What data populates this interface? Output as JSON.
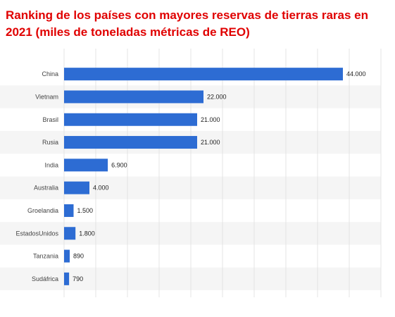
{
  "chart_data": {
    "type": "bar",
    "orientation": "horizontal",
    "title": "Ranking de los países con mayores reservas de tierras raras en 2021 (miles de toneladas métricas de REO)",
    "categories": [
      "China",
      "Vietnam",
      "Brasil",
      "Rusia",
      "India",
      "Australia",
      "Groelandia",
      "EstadosUnidos",
      "Tanzania",
      "Sudáfrica"
    ],
    "values": [
      44000,
      22000,
      21000,
      21000,
      6900,
      4000,
      1500,
      1800,
      890,
      790
    ],
    "value_labels": [
      "44.000",
      "22.000",
      "21.000",
      "21.000",
      "6.900",
      "4.000",
      "1.500",
      "1.800",
      "890",
      "790"
    ],
    "xlim": [
      0,
      50000
    ],
    "grid": true,
    "legend": "none",
    "bar_color": "#2d6cd3",
    "stripe_color": "#f5f5f5",
    "grid_color": "#e4e4e4"
  }
}
